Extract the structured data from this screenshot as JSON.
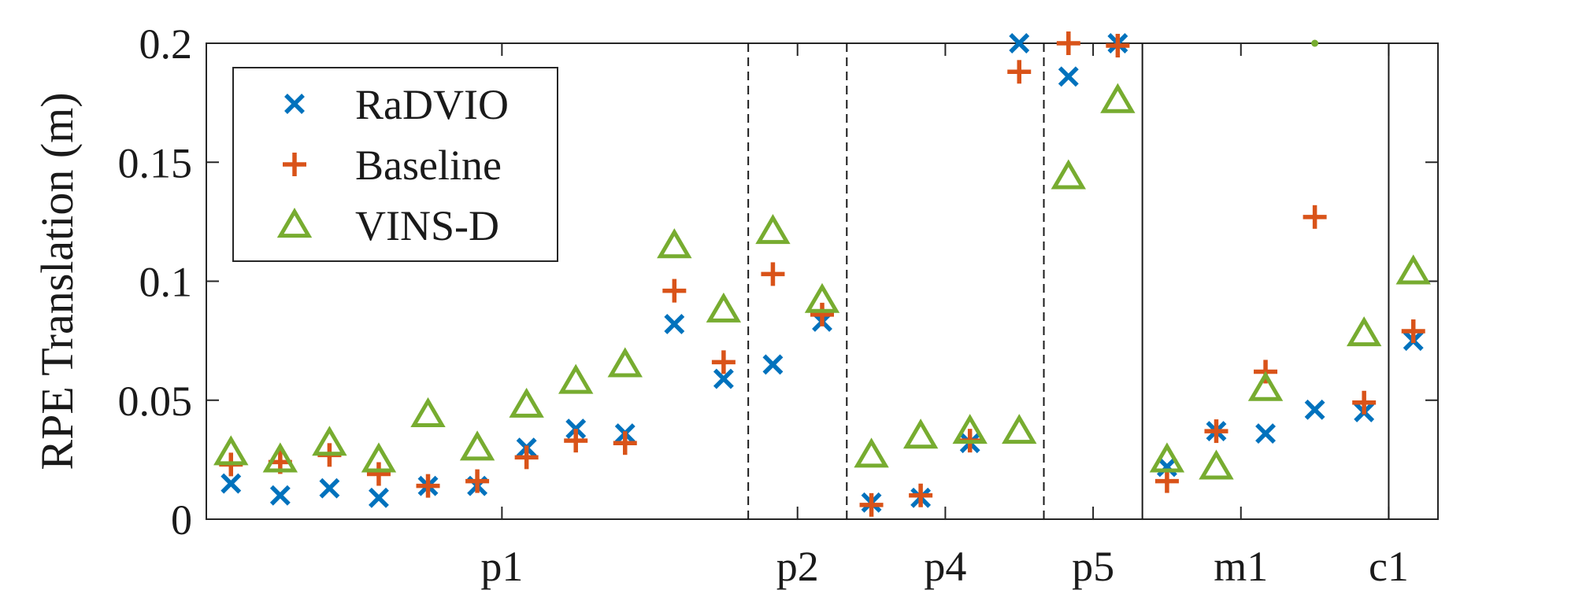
{
  "chart_data": {
    "type": "scatter",
    "title": "",
    "xlabel": "",
    "ylabel": "RPE Translation (m)",
    "ylim": [
      0,
      0.2
    ],
    "xlim": [
      0.5,
      25.5
    ],
    "yticks": [
      0,
      0.05,
      0.1,
      0.15,
      0.2
    ],
    "ytick_labels": [
      "0",
      "0.05",
      "0.1",
      "0.15",
      "0.2"
    ],
    "grid": false,
    "legend_position": "top-left",
    "groups": [
      {
        "label": "p1",
        "center": 6.5
      },
      {
        "label": "p2",
        "center": 12.5
      },
      {
        "label": "p4",
        "center": 15.5
      },
      {
        "label": "p5",
        "center": 18.5
      },
      {
        "label": "m1",
        "center": 21.5
      },
      {
        "label": "c1",
        "center": 24.5
      }
    ],
    "separators": [
      {
        "x": 11.5,
        "style": "dashed"
      },
      {
        "x": 13.5,
        "style": "dashed"
      },
      {
        "x": 17.5,
        "style": "dashed"
      },
      {
        "x": 19.5,
        "style": "solid"
      },
      {
        "x": 24.5,
        "style": "solid"
      }
    ],
    "colors": {
      "RaDVIO": "#0072BD",
      "Baseline": "#D95319",
      "VINS-D": "#77AC30"
    },
    "series": [
      {
        "name": "RaDVIO",
        "marker": "x",
        "x": [
          1,
          2,
          3,
          4,
          5,
          6,
          7,
          8,
          9,
          10,
          11,
          12,
          13,
          14,
          15,
          16,
          17,
          18,
          19,
          20,
          21,
          22,
          23,
          24,
          25
        ],
        "values": [
          0.015,
          0.01,
          0.013,
          0.009,
          0.014,
          0.014,
          0.03,
          0.038,
          0.036,
          0.082,
          0.059,
          0.065,
          0.083,
          0.007,
          0.009,
          0.032,
          0.2,
          0.186,
          0.2,
          0.022,
          0.037,
          0.036,
          0.046,
          0.045,
          0.075
        ]
      },
      {
        "name": "Baseline",
        "marker": "+",
        "x": [
          1,
          2,
          3,
          4,
          5,
          6,
          7,
          8,
          9,
          10,
          11,
          12,
          13,
          14,
          15,
          16,
          17,
          18,
          19,
          20,
          21,
          22,
          23,
          24,
          25
        ],
        "values": [
          0.023,
          0.024,
          0.027,
          0.019,
          0.014,
          0.016,
          0.026,
          0.033,
          0.032,
          0.096,
          0.066,
          0.103,
          0.086,
          0.006,
          0.01,
          0.033,
          0.188,
          0.2,
          0.199,
          0.016,
          0.037,
          0.062,
          0.127,
          0.049,
          0.079
        ]
      },
      {
        "name": "VINS-D",
        "marker": "triangle",
        "x": [
          1,
          2,
          3,
          4,
          5,
          6,
          7,
          8,
          9,
          10,
          11,
          12,
          13,
          14,
          15,
          16,
          17,
          18,
          19,
          20,
          21,
          22,
          23,
          24,
          25
        ],
        "values": [
          0.028,
          0.025,
          0.032,
          0.025,
          0.044,
          0.03,
          0.048,
          0.058,
          0.065,
          0.115,
          0.088,
          0.121,
          0.092,
          0.027,
          0.035,
          0.037,
          0.037,
          0.144,
          0.176,
          0.025,
          0.022,
          0.055,
          0.2,
          0.078,
          0.104
        ],
        "clipped": [
          false,
          false,
          false,
          false,
          false,
          false,
          false,
          false,
          false,
          false,
          false,
          false,
          false,
          false,
          false,
          false,
          false,
          false,
          false,
          false,
          false,
          false,
          true,
          false,
          false
        ]
      }
    ]
  }
}
